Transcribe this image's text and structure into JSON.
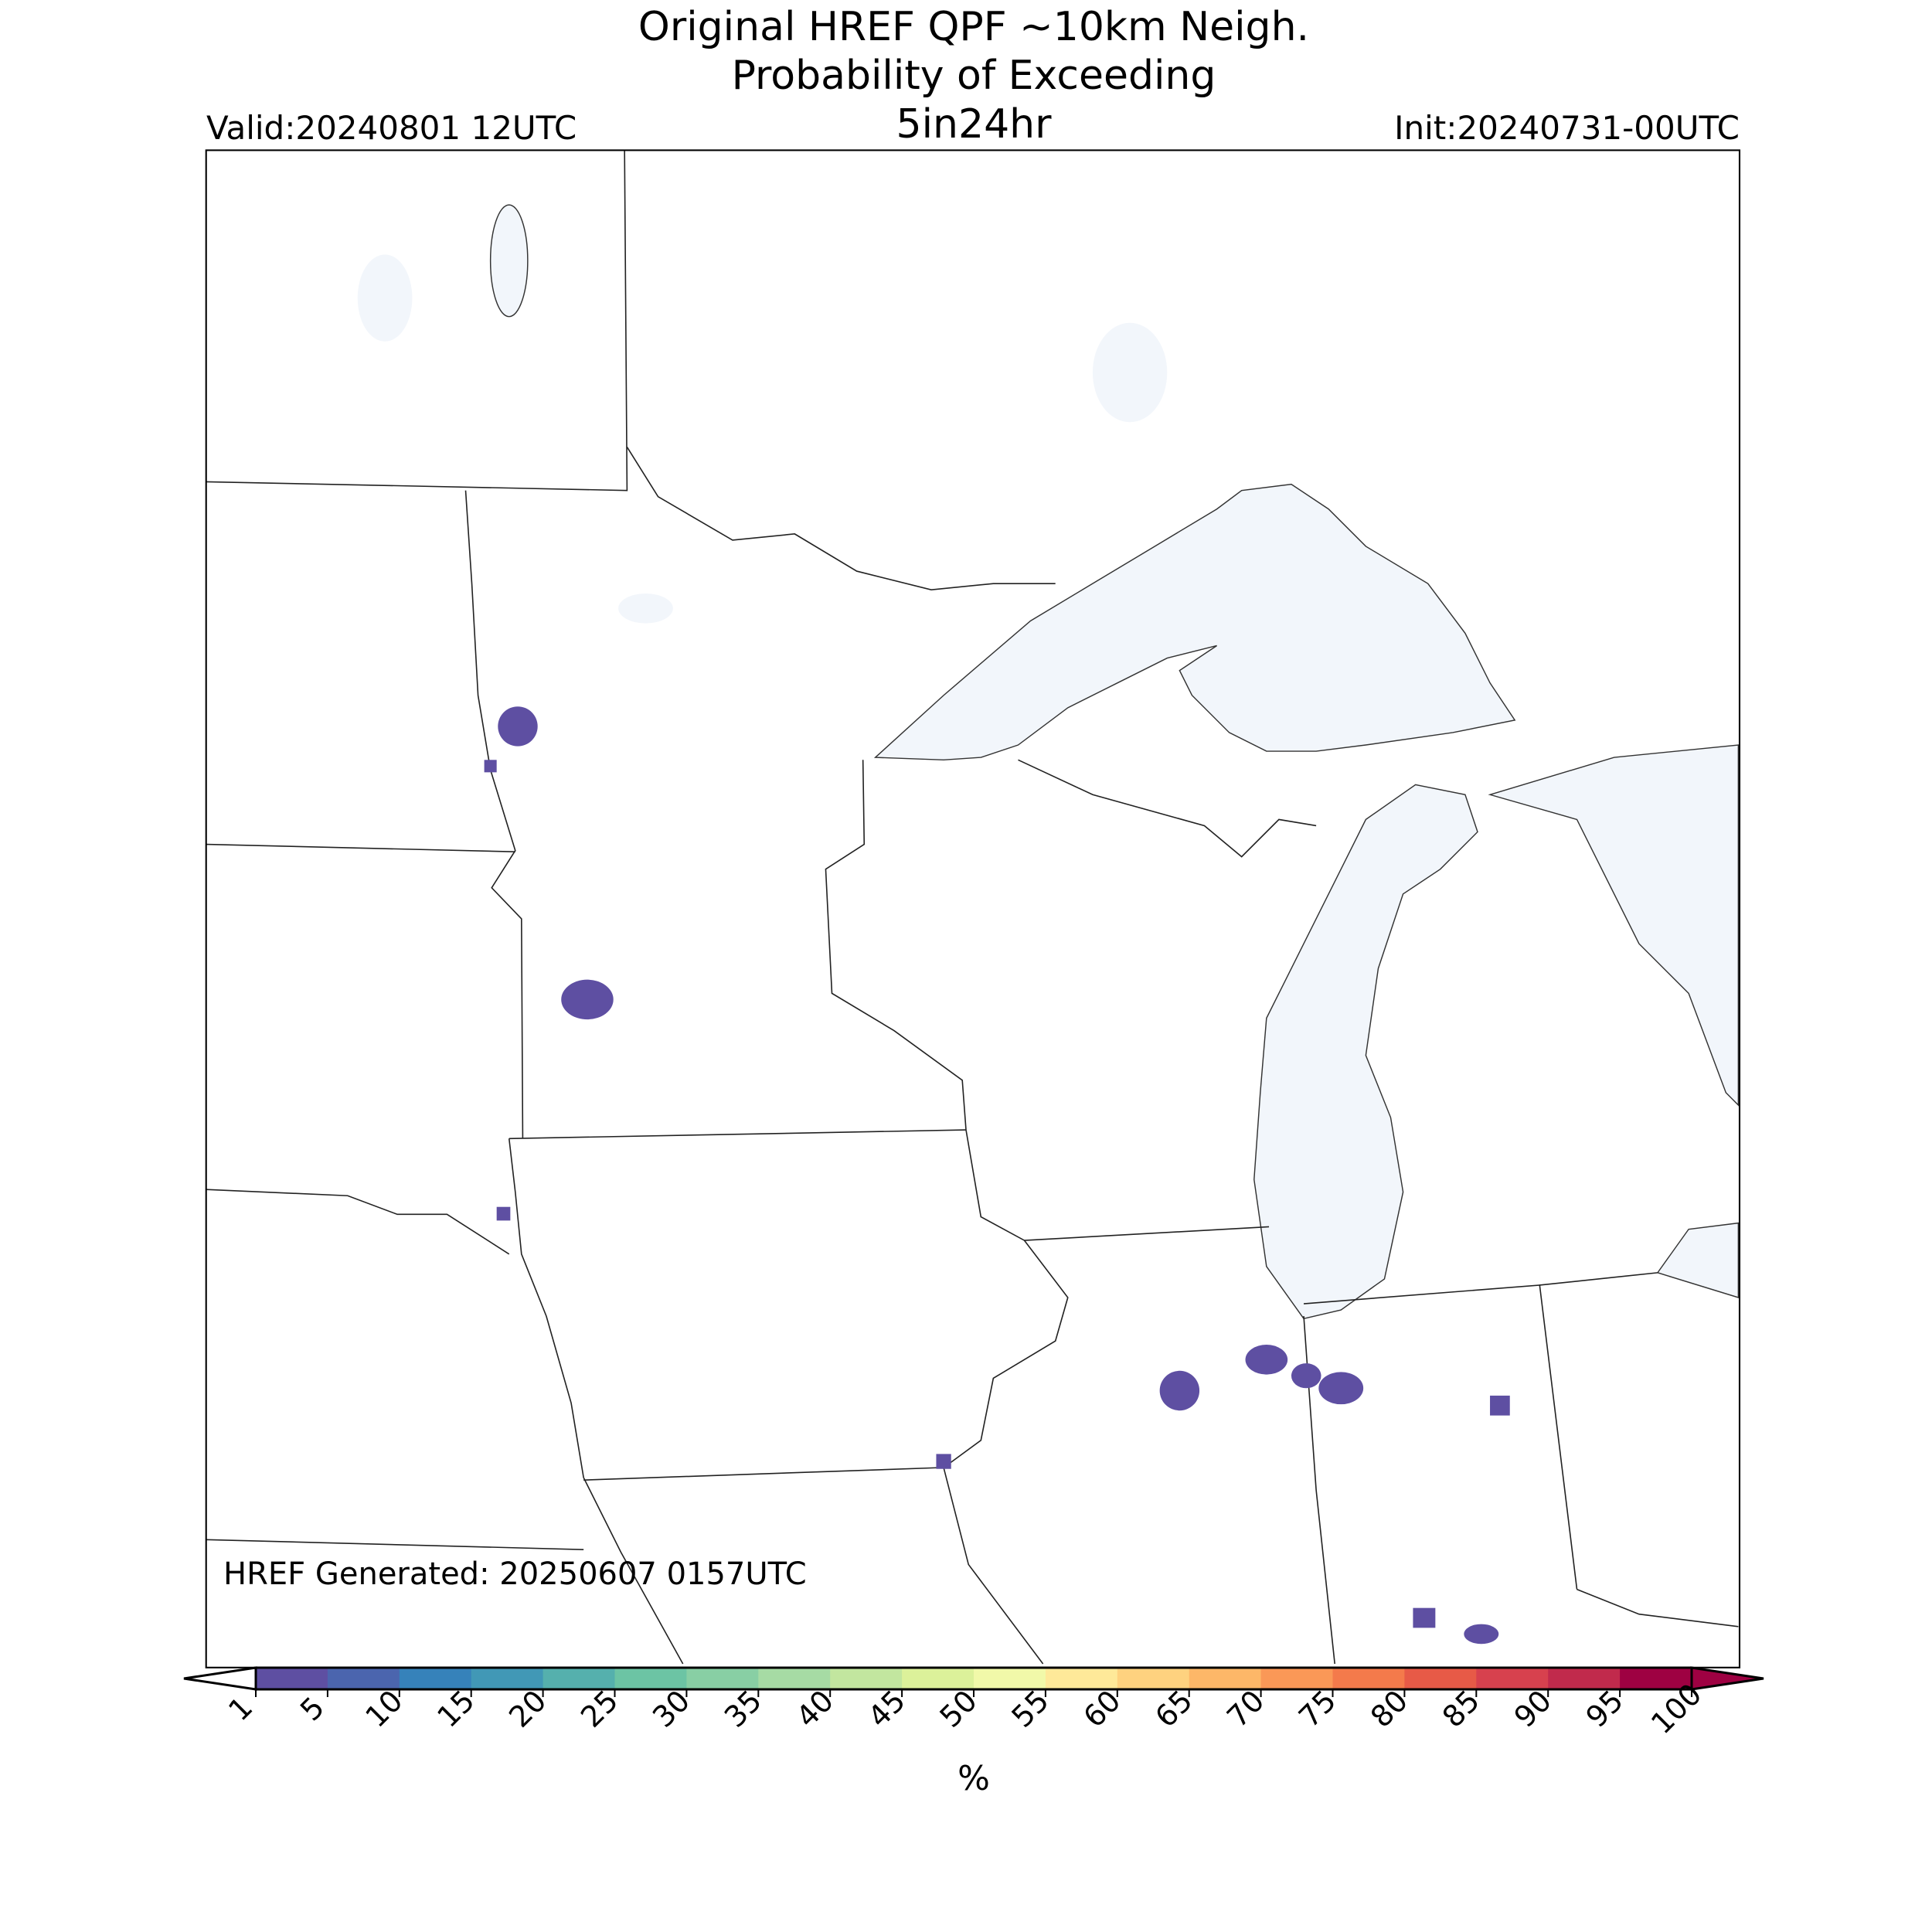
{
  "header": {
    "title_lines": [
      "Original HREF QPF ~10km Neigh.",
      "Probability of Exceeding",
      "5in24hr"
    ],
    "valid": "Valid:20240801 12UTC",
    "init": "Init:20240731-00UTC"
  },
  "map": {
    "generated": "HREF Generated: 20250607 0157UTC"
  },
  "colorbar": {
    "label": "%",
    "ticks": [
      1,
      5,
      10,
      15,
      20,
      25,
      30,
      35,
      40,
      45,
      50,
      55,
      60,
      65,
      70,
      75,
      80,
      85,
      90,
      95,
      100
    ],
    "colors": [
      "#5e4fa2",
      "#4b65ae",
      "#3682ba",
      "#4198b6",
      "#55b0ad",
      "#6cc4a4",
      "#88cfa4",
      "#a6dba4",
      "#c2e69f",
      "#dcf19a",
      "#f1f9a9",
      "#fee999",
      "#fed27f",
      "#fdb768",
      "#fa9857",
      "#f47a4b",
      "#e75a47",
      "#d7414e",
      "#c12a4c",
      "#9e0142"
    ]
  }
}
